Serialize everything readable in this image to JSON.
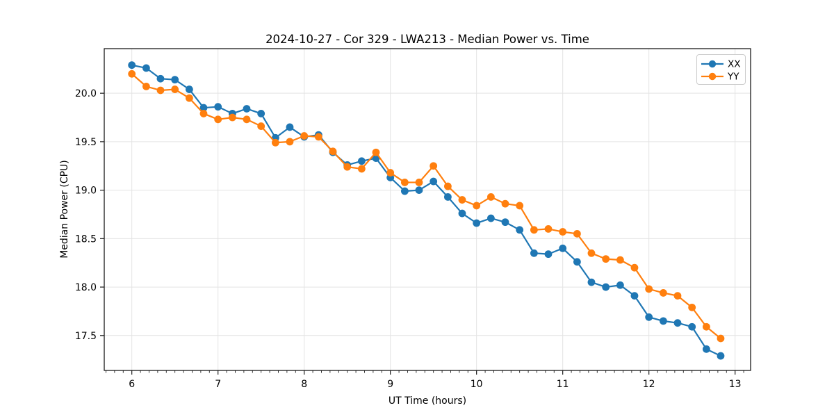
{
  "chart_data": {
    "type": "line",
    "title": "2024-10-27 - Cor 329 - LWA213 - Median Power vs. Time",
    "xlabel": "UT Time (hours)",
    "ylabel": "Median Power (CPU)",
    "xlim": [
      5.68,
      13.18
    ],
    "ylim": [
      17.14,
      20.46
    ],
    "xticks": [
      6,
      7,
      8,
      9,
      10,
      11,
      12,
      13
    ],
    "yticks": [
      17.5,
      18.0,
      18.5,
      19.0,
      19.5,
      20.0
    ],
    "x_minor_step": 0.1,
    "grid": true,
    "grid_color": "#e3e3e3",
    "spine_color": "#1a1a1a",
    "legend_position": "upper right",
    "x": [
      6.0,
      6.167,
      6.333,
      6.5,
      6.667,
      6.833,
      7.0,
      7.167,
      7.333,
      7.5,
      7.667,
      7.833,
      8.0,
      8.167,
      8.333,
      8.5,
      8.667,
      8.833,
      9.0,
      9.167,
      9.333,
      9.5,
      9.667,
      9.833,
      10.0,
      10.167,
      10.333,
      10.5,
      10.667,
      10.833,
      11.0,
      11.167,
      11.333,
      11.5,
      11.667,
      11.833,
      12.0,
      12.167,
      12.333,
      12.5,
      12.667,
      12.833
    ],
    "series": [
      {
        "name": "XX",
        "color": "#1f77b4",
        "values": [
          20.29,
          20.26,
          20.15,
          20.14,
          20.04,
          19.85,
          19.86,
          19.79,
          19.84,
          19.79,
          19.54,
          19.65,
          19.55,
          19.57,
          19.39,
          19.26,
          19.3,
          19.33,
          19.13,
          18.99,
          19.0,
          19.09,
          18.93,
          18.76,
          18.66,
          18.71,
          18.67,
          18.59,
          18.35,
          18.34,
          18.4,
          18.26,
          18.05,
          18.0,
          18.02,
          17.91,
          17.69,
          17.65,
          17.63,
          17.59,
          17.36,
          17.29
        ]
      },
      {
        "name": "YY",
        "color": "#ff7f0e",
        "values": [
          20.2,
          20.07,
          20.03,
          20.04,
          19.95,
          19.79,
          19.73,
          19.75,
          19.73,
          19.66,
          19.49,
          19.5,
          19.56,
          19.55,
          19.4,
          19.24,
          19.22,
          19.39,
          19.18,
          19.08,
          19.08,
          19.25,
          19.04,
          18.9,
          18.84,
          18.93,
          18.86,
          18.84,
          18.59,
          18.6,
          18.57,
          18.55,
          18.35,
          18.29,
          18.28,
          18.2,
          17.98,
          17.94,
          17.91,
          17.79,
          17.59,
          17.47
        ]
      }
    ]
  }
}
